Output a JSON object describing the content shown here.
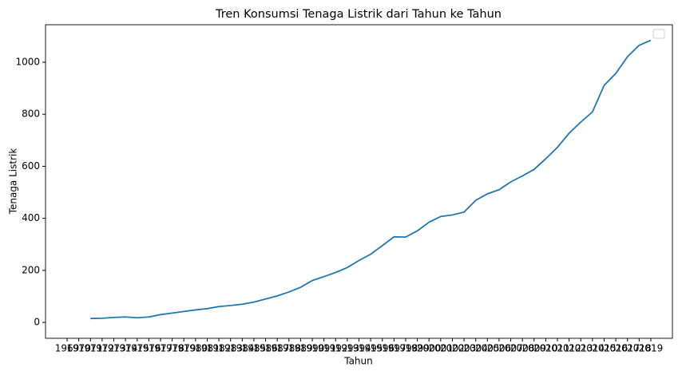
{
  "chart_data": {
    "type": "line",
    "title": "Tren Konsumsi Tenaga Listrik dari Tahun ke Tahun",
    "x_label": "Tahun",
    "y_label": "Tenaga Listrik",
    "categories": [
      "1969",
      "1970",
      "1971",
      "1972",
      "1973",
      "1974",
      "1975",
      "1976",
      "1977",
      "1978",
      "1979",
      "1980",
      "1981",
      "1982",
      "1983",
      "1984",
      "1985",
      "1986",
      "1987",
      "1988",
      "1989",
      "1990",
      "1991",
      "1992",
      "1993",
      "1994",
      "1995",
      "1996",
      "1997",
      "1998",
      "1999",
      "2000",
      "2001",
      "2002",
      "2003",
      "2004",
      "2005",
      "2006",
      "2007",
      "2008",
      "2009",
      "2010",
      "2011",
      "2012",
      "2013",
      "2014",
      "2015",
      "2016",
      "2017",
      "2018",
      "2019"
    ],
    "series": [
      {
        "color": "#1f77b4",
        "values": [
          null,
          null,
          15,
          16,
          19,
          21,
          18,
          21,
          30,
          36,
          42,
          48,
          53,
          61,
          65,
          70,
          78,
          90,
          102,
          117,
          135,
          161,
          176,
          192,
          211,
          238,
          262,
          295,
          329,
          328,
          352,
          385,
          407,
          413,
          424,
          469,
          494,
          510,
          540,
          563,
          588,
          629,
          673,
          727,
          770,
          809,
          911,
          957,
          1021,
          1065,
          1084
        ]
      }
    ],
    "ylim": [
      -61,
      1144
    ],
    "yticks": [
      0,
      200,
      400,
      600,
      800,
      1000
    ],
    "grid": false,
    "legend": "upper right"
  }
}
